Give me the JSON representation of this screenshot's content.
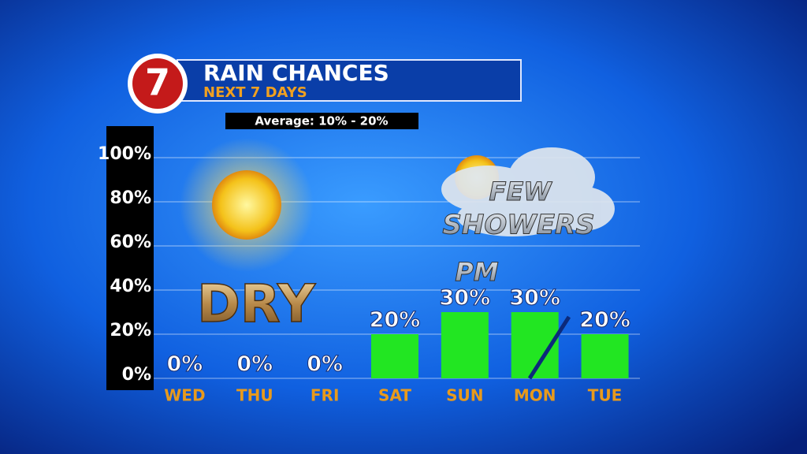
{
  "chart_data": {
    "type": "bar",
    "logo": "7",
    "title": "RAIN CHANCES",
    "subtitle": "NEXT 7 DAYS",
    "note": "Average: 10% - 20%",
    "annotations": [
      "DRY",
      "FEW",
      "SHOWERS",
      "PM"
    ],
    "categories": [
      "WED",
      "THU",
      "FRI",
      "SAT",
      "SUN",
      "MON",
      "TUE"
    ],
    "values": [
      0,
      0,
      0,
      20,
      30,
      30,
      20
    ],
    "value_labels": [
      "0%",
      "0%",
      "0%",
      "20%",
      "30%",
      "30%",
      "20%"
    ],
    "color": "#22e622",
    "ylim": [
      0,
      100
    ],
    "yticks": [
      {
        "value": 0,
        "label": "0%"
      },
      {
        "value": 20,
        "label": "20%"
      },
      {
        "value": 40,
        "label": "40%"
      },
      {
        "value": 60,
        "label": "60%"
      },
      {
        "value": 80,
        "label": "80%"
      },
      {
        "value": 100,
        "label": "100%"
      }
    ],
    "grid": true
  }
}
